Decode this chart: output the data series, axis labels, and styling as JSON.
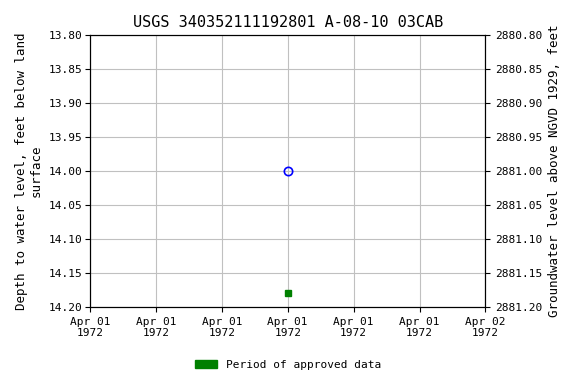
{
  "title": "USGS 340352111192801 A-08-10 03CAB",
  "ylabel_left": "Depth to water level, feet below land\nsurface",
  "ylabel_right": "Groundwater level above NGVD 1929, feet",
  "ylim_left": [
    13.8,
    14.2
  ],
  "ylim_right": [
    2880.8,
    2881.2
  ],
  "yticks_left": [
    13.8,
    13.85,
    13.9,
    13.95,
    14.0,
    14.05,
    14.1,
    14.15,
    14.2
  ],
  "yticks_right": [
    2880.8,
    2880.85,
    2880.9,
    2880.95,
    2881.0,
    2881.05,
    2881.1,
    2881.15,
    2881.2
  ],
  "blue_circle_depth": 14.0,
  "green_square_depth": 14.18,
  "data_date_str": "1972-04-01",
  "background_color": "#ffffff",
  "plot_bg_color": "#ffffff",
  "grid_color": "#c0c0c0",
  "title_fontsize": 11,
  "axis_label_fontsize": 9,
  "tick_fontsize": 8,
  "legend_label": "Period of approved data",
  "legend_color": "#008000"
}
